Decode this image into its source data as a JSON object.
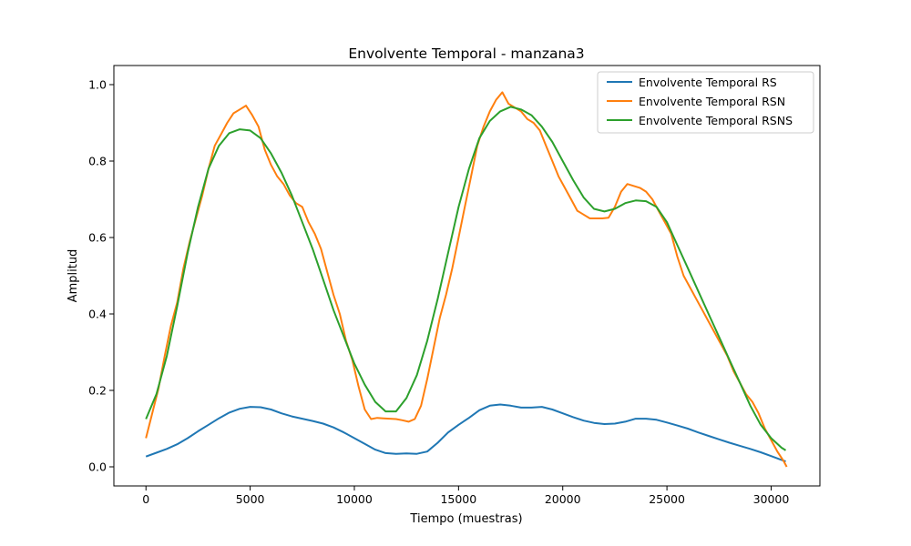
{
  "chart_data": {
    "type": "line",
    "title": "Envolvente Temporal - manzana3",
    "xlabel": "Tiempo (muestras)",
    "ylabel": "Amplitud",
    "xlim": [
      -1540,
      32340
    ],
    "ylim": [
      -0.05,
      1.05
    ],
    "xticks": [
      0,
      5000,
      10000,
      15000,
      20000,
      25000,
      30000
    ],
    "xtick_labels": [
      "0",
      "5000",
      "10000",
      "15000",
      "20000",
      "25000",
      "30000"
    ],
    "yticks": [
      0.0,
      0.2,
      0.4,
      0.6,
      0.8,
      1.0
    ],
    "ytick_labels": [
      "0.0",
      "0.2",
      "0.4",
      "0.6",
      "0.8",
      "1.0"
    ],
    "grid": false,
    "legend_position": "top-right",
    "series": [
      {
        "name": "Envolvente Temporal RS",
        "color": "#1f77b4",
        "x": [
          0,
          500,
          1000,
          1500,
          2000,
          2500,
          3000,
          3500,
          4000,
          4500,
          5000,
          5500,
          6000,
          6500,
          7000,
          7500,
          8000,
          8500,
          9000,
          9500,
          10000,
          10500,
          11000,
          11500,
          12000,
          12500,
          13000,
          13500,
          14000,
          14500,
          15000,
          15500,
          16000,
          16500,
          17000,
          17500,
          18000,
          18500,
          19000,
          19500,
          20000,
          20500,
          21000,
          21500,
          22000,
          22500,
          23000,
          23500,
          24000,
          24500,
          25000,
          25500,
          26000,
          26500,
          27000,
          27500,
          28000,
          28500,
          29000,
          29500,
          30000,
          30500,
          30700
        ],
        "y": [
          0.027,
          0.037,
          0.047,
          0.059,
          0.075,
          0.093,
          0.11,
          0.127,
          0.142,
          0.152,
          0.157,
          0.156,
          0.15,
          0.14,
          0.132,
          0.126,
          0.12,
          0.113,
          0.103,
          0.09,
          0.075,
          0.06,
          0.045,
          0.036,
          0.034,
          0.035,
          0.034,
          0.04,
          0.063,
          0.09,
          0.11,
          0.128,
          0.148,
          0.16,
          0.163,
          0.16,
          0.155,
          0.155,
          0.157,
          0.15,
          0.14,
          0.13,
          0.121,
          0.115,
          0.112,
          0.113,
          0.118,
          0.126,
          0.126,
          0.123,
          0.116,
          0.108,
          0.1,
          0.09,
          0.081,
          0.072,
          0.063,
          0.055,
          0.047,
          0.038,
          0.028,
          0.018,
          0.014
        ]
      },
      {
        "name": "Envolvente Temporal RSN",
        "color": "#ff7f0e",
        "x": [
          0,
          300,
          600,
          900,
          1200,
          1500,
          1800,
          2100,
          2400,
          2700,
          3000,
          3300,
          3600,
          3900,
          4200,
          4500,
          4800,
          5100,
          5400,
          5700,
          6000,
          6300,
          6600,
          6900,
          7200,
          7500,
          7800,
          8100,
          8400,
          8700,
          9000,
          9300,
          9600,
          9900,
          10200,
          10500,
          10800,
          11100,
          11400,
          11700,
          12000,
          12300,
          12600,
          12900,
          13200,
          13500,
          13800,
          14100,
          14400,
          14700,
          15000,
          15300,
          15600,
          15900,
          16200,
          16500,
          16800,
          17100,
          17400,
          17700,
          18000,
          18300,
          18600,
          18900,
          19200,
          19500,
          19800,
          20100,
          20400,
          20700,
          21000,
          21300,
          21600,
          21900,
          22200,
          22500,
          22800,
          23100,
          23400,
          23700,
          24000,
          24300,
          24600,
          24900,
          25200,
          25500,
          25800,
          26100,
          26400,
          26700,
          27000,
          27300,
          27600,
          27900,
          28200,
          28500,
          28800,
          29100,
          29400,
          29700,
          30000,
          30300,
          30600,
          30750
        ],
        "y": [
          0.075,
          0.14,
          0.205,
          0.29,
          0.37,
          0.43,
          0.52,
          0.59,
          0.65,
          0.71,
          0.78,
          0.84,
          0.87,
          0.9,
          0.925,
          0.935,
          0.945,
          0.92,
          0.89,
          0.83,
          0.79,
          0.76,
          0.74,
          0.71,
          0.69,
          0.68,
          0.64,
          0.61,
          0.57,
          0.51,
          0.45,
          0.4,
          0.33,
          0.28,
          0.21,
          0.15,
          0.125,
          0.128,
          0.127,
          0.126,
          0.125,
          0.122,
          0.118,
          0.125,
          0.16,
          0.23,
          0.31,
          0.39,
          0.45,
          0.52,
          0.6,
          0.68,
          0.76,
          0.84,
          0.89,
          0.93,
          0.96,
          0.98,
          0.95,
          0.94,
          0.93,
          0.91,
          0.9,
          0.88,
          0.84,
          0.8,
          0.76,
          0.73,
          0.7,
          0.67,
          0.66,
          0.65,
          0.65,
          0.65,
          0.652,
          0.68,
          0.72,
          0.74,
          0.735,
          0.73,
          0.72,
          0.7,
          0.67,
          0.64,
          0.61,
          0.55,
          0.5,
          0.47,
          0.44,
          0.41,
          0.38,
          0.35,
          0.32,
          0.29,
          0.25,
          0.22,
          0.19,
          0.17,
          0.14,
          0.1,
          0.07,
          0.04,
          0.015,
          0.0
        ]
      },
      {
        "name": "Envolvente Temporal RSNS",
        "color": "#2ca02c",
        "x": [
          0,
          500,
          1000,
          1500,
          2000,
          2500,
          3000,
          3500,
          4000,
          4500,
          5000,
          5500,
          6000,
          6500,
          7000,
          7500,
          8000,
          8500,
          9000,
          9500,
          10000,
          10500,
          11000,
          11500,
          12000,
          12500,
          13000,
          13500,
          14000,
          14500,
          15000,
          15500,
          16000,
          16500,
          17000,
          17500,
          18000,
          18500,
          19000,
          19500,
          20000,
          20500,
          21000,
          21500,
          22000,
          22500,
          23000,
          23500,
          24000,
          24500,
          25000,
          25500,
          26000,
          26500,
          27000,
          27500,
          28000,
          28500,
          29000,
          29500,
          30000,
          30500,
          30700
        ],
        "y": [
          0.125,
          0.19,
          0.29,
          0.42,
          0.56,
          0.68,
          0.78,
          0.84,
          0.873,
          0.883,
          0.88,
          0.86,
          0.82,
          0.77,
          0.71,
          0.64,
          0.57,
          0.49,
          0.41,
          0.34,
          0.27,
          0.215,
          0.17,
          0.145,
          0.145,
          0.18,
          0.24,
          0.33,
          0.44,
          0.56,
          0.68,
          0.78,
          0.86,
          0.905,
          0.93,
          0.942,
          0.935,
          0.92,
          0.89,
          0.85,
          0.8,
          0.75,
          0.705,
          0.675,
          0.668,
          0.675,
          0.69,
          0.697,
          0.695,
          0.68,
          0.64,
          0.58,
          0.52,
          0.46,
          0.4,
          0.34,
          0.28,
          0.22,
          0.16,
          0.11,
          0.075,
          0.05,
          0.043
        ]
      }
    ]
  }
}
